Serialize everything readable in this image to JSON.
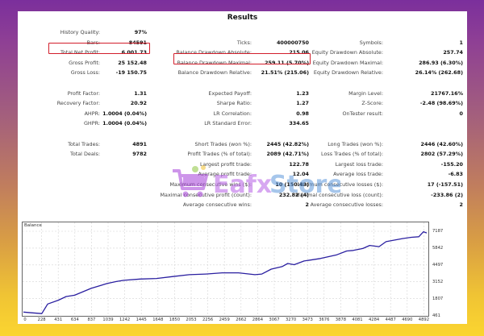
{
  "report": {
    "title": "Results",
    "columns": [
      {
        "rows": [
          {
            "label": "History Quality:",
            "value": "97%"
          },
          {
            "label": "Bars:",
            "value": "84591"
          },
          {
            "label": "Total Net Profit:",
            "value": "6 001.73",
            "highlighted": true
          },
          {
            "label": "Gross Profit:",
            "value": "25 152.48"
          },
          {
            "label": "Gross Loss:",
            "value": "-19 150.75"
          },
          {
            "label": "",
            "value": ""
          },
          {
            "label": "Profit Factor:",
            "value": "1.31"
          },
          {
            "label": "Recovery Factor:",
            "value": "20.92"
          },
          {
            "label": "AHPR:",
            "value": "1.0004 (0.04%)"
          },
          {
            "label": "GHPR:",
            "value": "1.0004 (0.04%)"
          },
          {
            "label": "",
            "value": ""
          },
          {
            "label": "Total Trades:",
            "value": "4891"
          },
          {
            "label": "Total Deals:",
            "value": "9782"
          }
        ]
      },
      {
        "rows": [
          {
            "label": "",
            "value": ""
          },
          {
            "label": "Ticks:",
            "value": "400000750"
          },
          {
            "label": "Balance Drawdown Absolute:",
            "value": "215.06"
          },
          {
            "label": "Balance Drawdown Maximal:",
            "value": "259.11 (5.70%)",
            "highlighted": true
          },
          {
            "label": "Balance Drawdown Relative:",
            "value": "21.51% (215.06)"
          },
          {
            "label": "",
            "value": ""
          },
          {
            "label": "Expected Payoff:",
            "value": "1.23"
          },
          {
            "label": "Sharpe Ratio:",
            "value": "1.27"
          },
          {
            "label": "LR Correlation:",
            "value": "0.98"
          },
          {
            "label": "LR Standard Error:",
            "value": "334.65"
          },
          {
            "label": "",
            "value": ""
          },
          {
            "label": "Short Trades (won %):",
            "value": "2445 (42.82%)"
          },
          {
            "label": "Profit Trades (% of total):",
            "value": "2089 (42.71%)"
          },
          {
            "label": "Largest profit trade:",
            "value": "122.78"
          },
          {
            "label": "Average profit trade:",
            "value": "12.04"
          },
          {
            "label": "Maximum consecutive wins ($):",
            "value": "10 (150.43)"
          },
          {
            "label": "Maximal consecutive profit (count):",
            "value": "232.82 (4)"
          },
          {
            "label": "Average consecutive wins:",
            "value": "2"
          }
        ]
      },
      {
        "rows": [
          {
            "label": "",
            "value": ""
          },
          {
            "label": "Symbols:",
            "value": "1"
          },
          {
            "label": "Equity Drawdown Absolute:",
            "value": "257.74"
          },
          {
            "label": "Equity Drawdown Maximal:",
            "value": "286.93 (6.30%)"
          },
          {
            "label": "Equity Drawdown Relative:",
            "value": "26.14% (262.68)"
          },
          {
            "label": "",
            "value": ""
          },
          {
            "label": "Margin Level:",
            "value": "21767.16%"
          },
          {
            "label": "Z-Score:",
            "value": "-2.48 (98.69%)"
          },
          {
            "label": "OnTester result:",
            "value": "0"
          },
          {
            "label": "",
            "value": ""
          },
          {
            "label": "",
            "value": ""
          },
          {
            "label": "Long Trades (won %):",
            "value": "2446 (42.60%)"
          },
          {
            "label": "Loss Trades (% of total):",
            "value": "2802 (57.29%)"
          },
          {
            "label": "Largest loss trade:",
            "value": "-155.20"
          },
          {
            "label": "Average loss trade:",
            "value": "-6.83"
          },
          {
            "label": "Maximum consecutive losses ($):",
            "value": "17 (-157.51)"
          },
          {
            "label": "Maximal consecutive loss (count):",
            "value": "-233.86 (2)"
          },
          {
            "label": "Average consecutive losses:",
            "value": "2"
          }
        ]
      }
    ]
  },
  "watermark": {
    "text_a": "Eafx",
    "text_b": "Store",
    "icon": "shopping-cart-icon"
  },
  "chart": {
    "title": "Balance",
    "line_color": "#2a1fa0",
    "x_ticks": [
      "0",
      "228",
      "431",
      "634",
      "837",
      "1039",
      "1242",
      "1445",
      "1648",
      "1850",
      "2053",
      "2256",
      "2459",
      "2662",
      "2864",
      "3067",
      "3270",
      "3473",
      "3676",
      "3878",
      "4081",
      "4284",
      "4487",
      "4690",
      "4892"
    ],
    "y_ticks": [
      "7187",
      "5842",
      "4497",
      "3152",
      "1807",
      "461"
    ]
  },
  "chart_data": {
    "type": "line",
    "title": "Balance",
    "xlabel": "",
    "ylabel": "",
    "xlim": [
      0,
      4990
    ],
    "ylim": [
      461,
      7187
    ],
    "grid": true,
    "legend": "none",
    "series": [
      {
        "name": "Balance",
        "x": [
          0,
          100,
          228,
          300,
          431,
          530,
          634,
          837,
          1039,
          1150,
          1242,
          1445,
          1648,
          1850,
          2053,
          2256,
          2459,
          2662,
          2864,
          2950,
          3067,
          3200,
          3270,
          3350,
          3473,
          3676,
          3878,
          4000,
          4081,
          4200,
          4284,
          4400,
          4487,
          4690,
          4800,
          4892,
          4950,
          4990
        ],
        "y": [
          700,
          640,
          580,
          1350,
          1650,
          1950,
          2050,
          2600,
          3000,
          3150,
          3250,
          3350,
          3400,
          3550,
          3700,
          3750,
          3850,
          3850,
          3700,
          3750,
          4150,
          4350,
          4600,
          4500,
          4800,
          5000,
          5300,
          5600,
          5650,
          5800,
          6050,
          5950,
          6350,
          6600,
          6700,
          6750,
          7150,
          7050
        ]
      }
    ]
  }
}
